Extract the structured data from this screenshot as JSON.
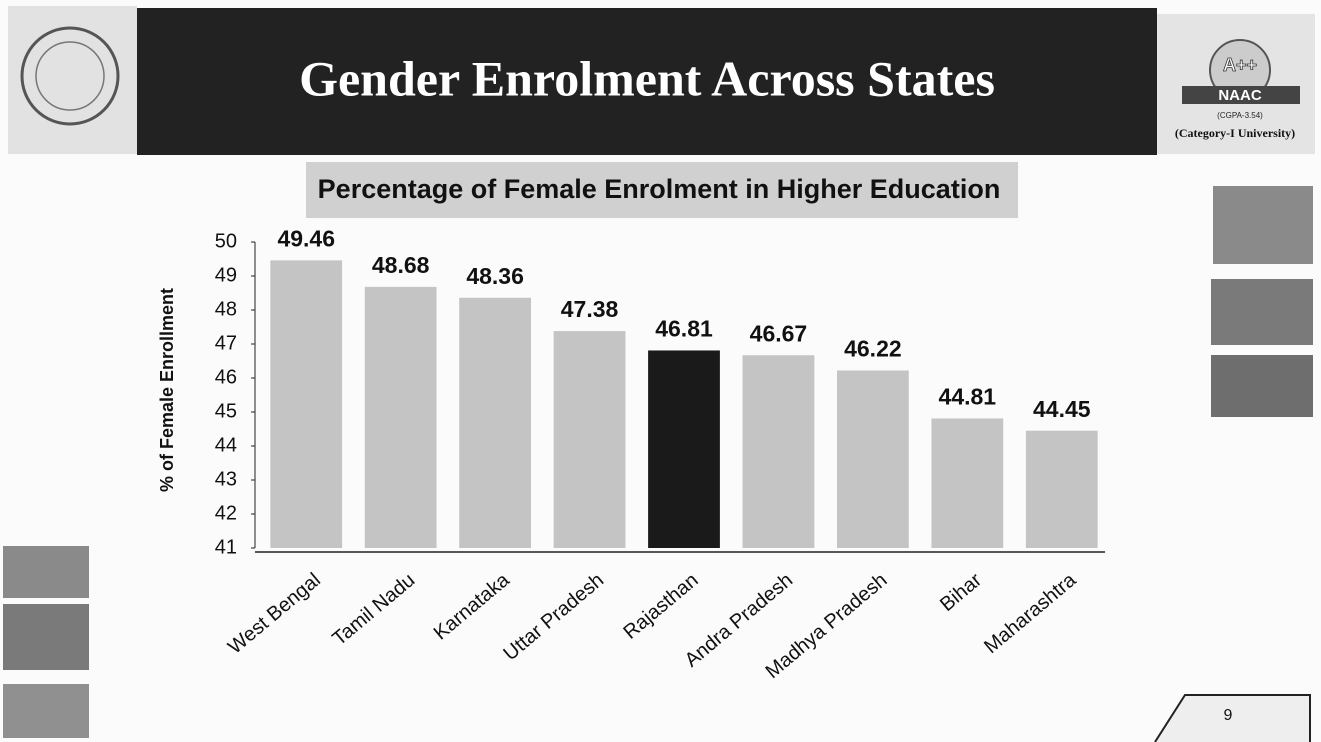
{
  "header": {
    "title": "Gender Enrolment Across States",
    "badge": "A++",
    "badge_org": "NAAC",
    "cgpa": "(CGPA-3.54)",
    "category": "(Category-I University)"
  },
  "page_number": 9,
  "chart_data": {
    "type": "bar",
    "title": "Percentage of Female Enrolment in Higher Education",
    "y_label": "% of Female Enrollment",
    "categories": [
      "West Bengal",
      "Tamil Nadu",
      "Karnataka",
      "Uttar Pradesh",
      "Rajasthan",
      "Andra Pradesh",
      "Madhya Pradesh",
      "Bihar",
      "Maharashtra"
    ],
    "values": [
      49.46,
      48.68,
      48.36,
      47.38,
      46.81,
      46.67,
      46.22,
      44.81,
      44.45
    ],
    "colors": [
      "#c4c4c4",
      "#c4c4c4",
      "#c4c4c4",
      "#c4c4c4",
      "#1a1a1a",
      "#c4c4c4",
      "#c4c4c4",
      "#c4c4c4",
      "#c4c4c4"
    ],
    "ylim": [
      41,
      50
    ],
    "yticks": [
      41,
      42,
      43,
      44,
      45,
      46,
      47,
      48,
      49,
      50
    ],
    "grid": false
  }
}
